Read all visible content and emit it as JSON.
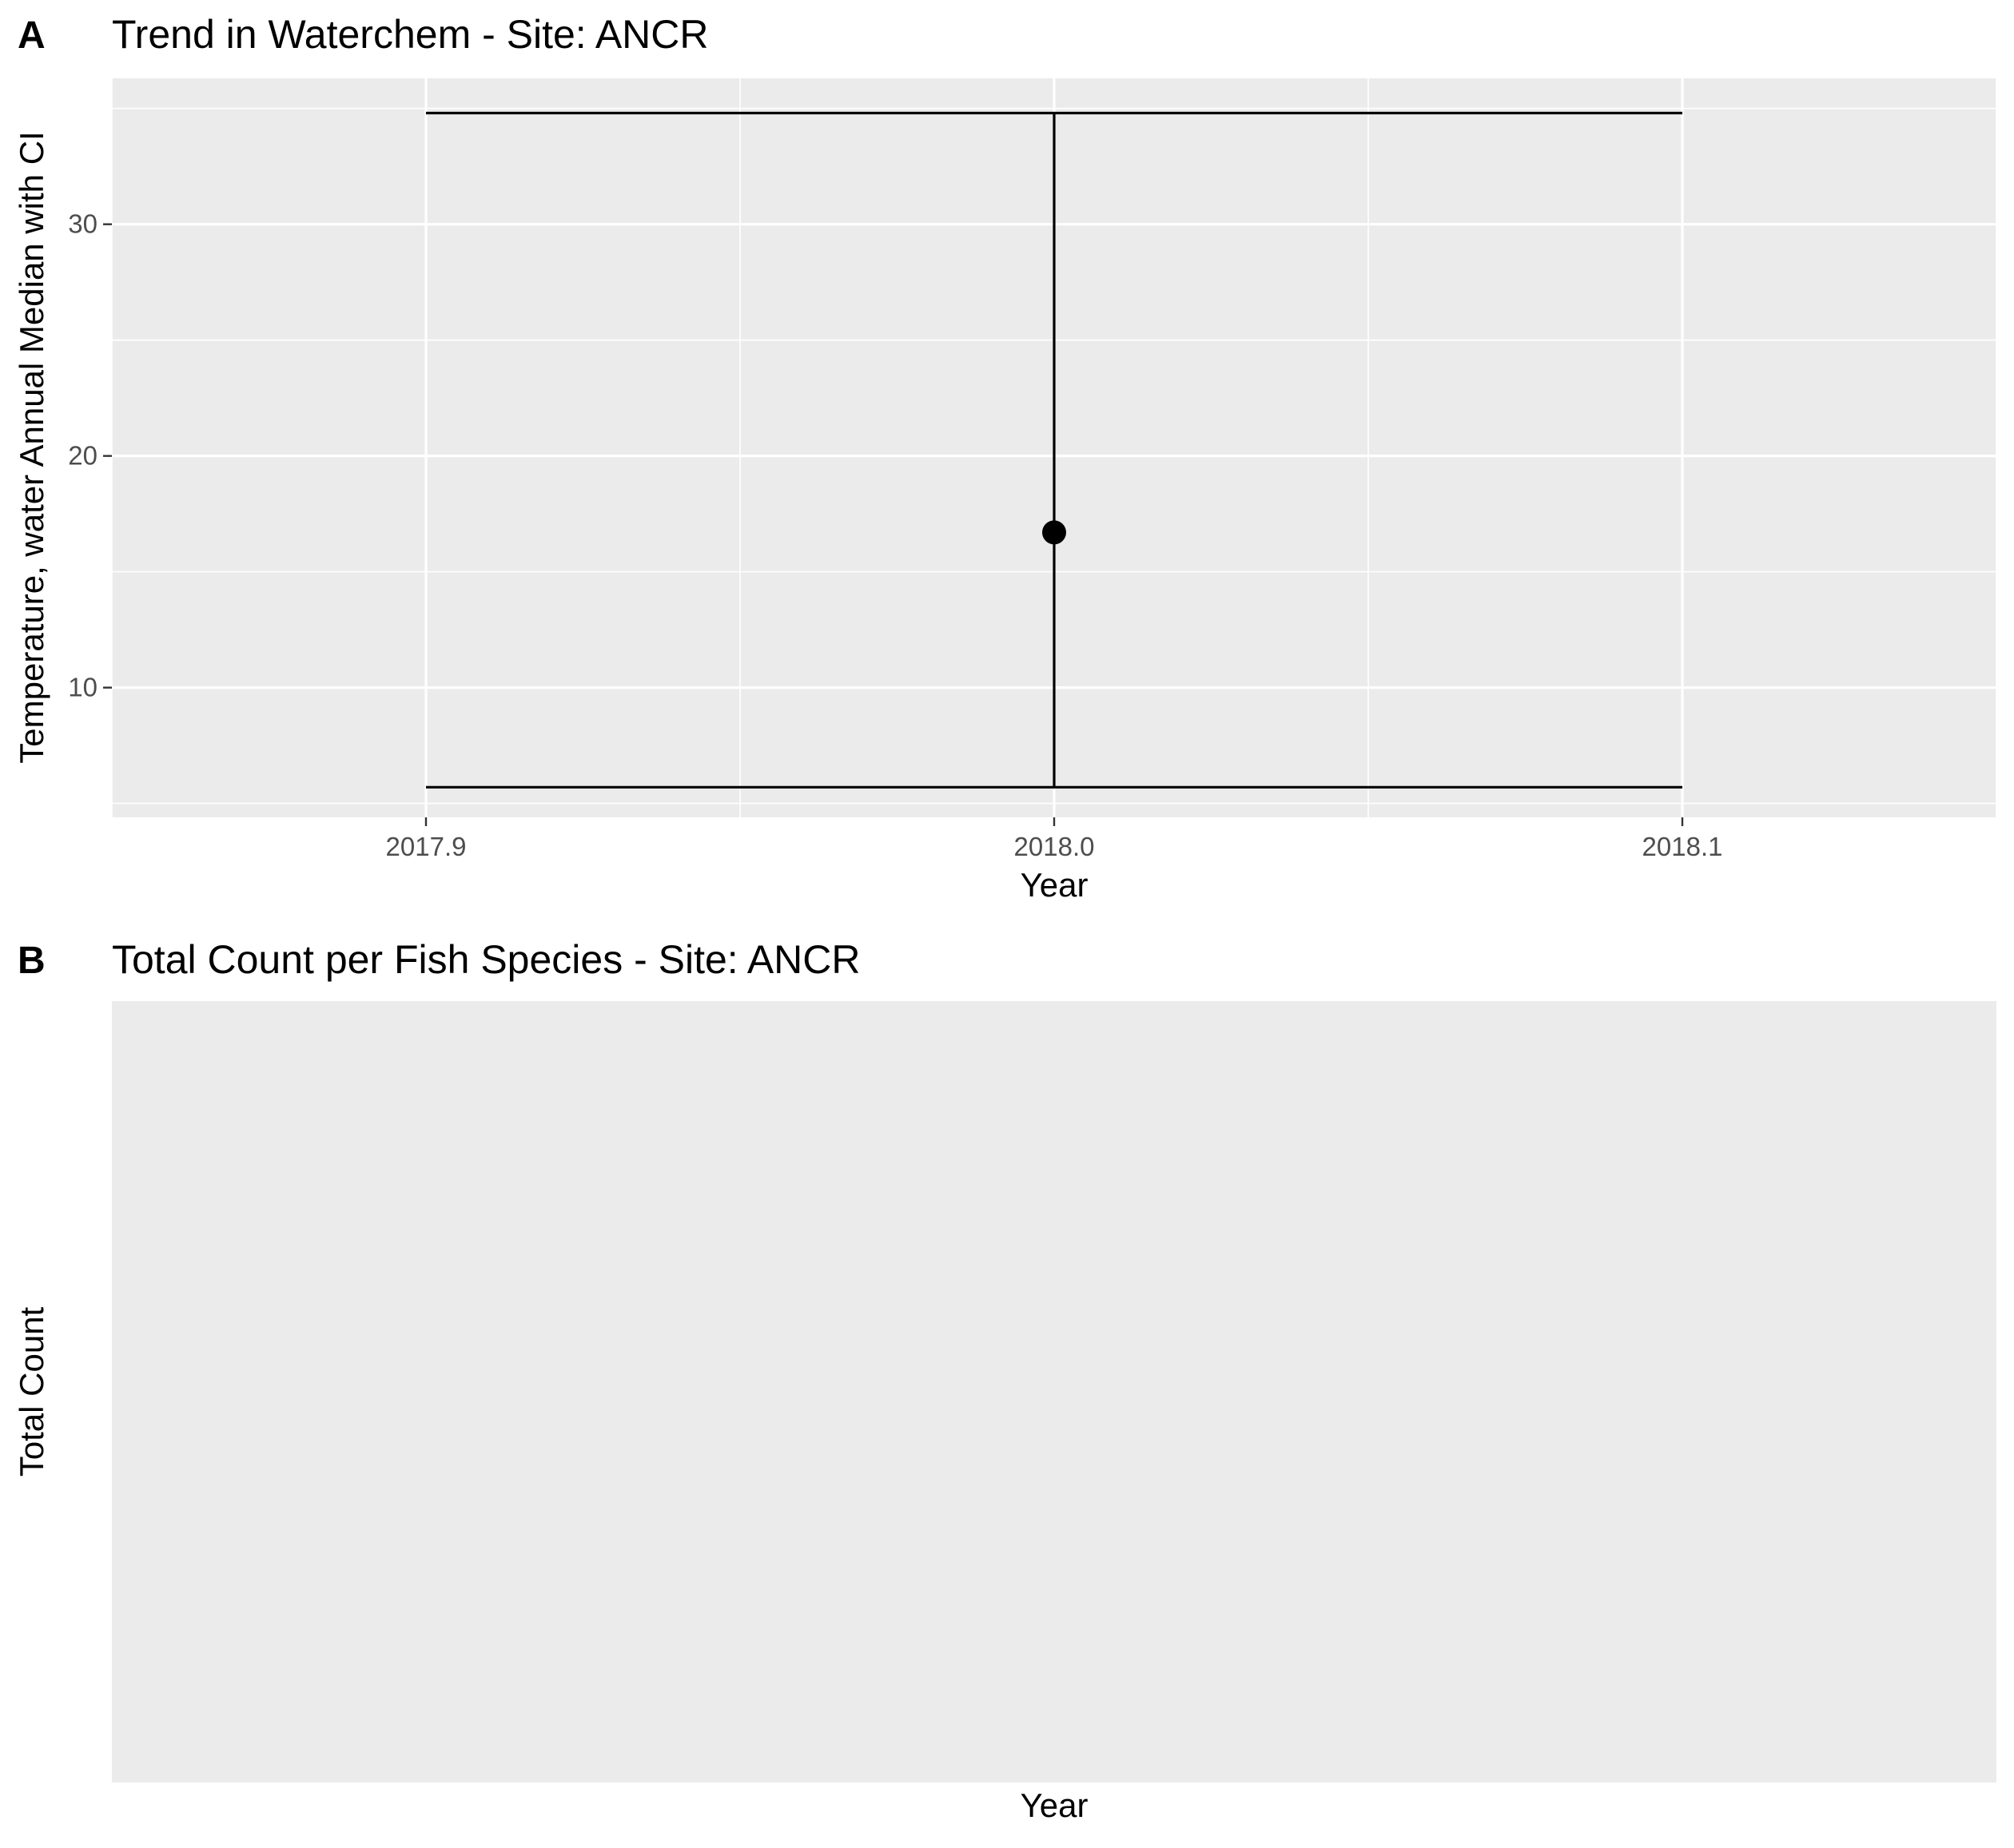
{
  "chart_data": [
    {
      "panel": "A",
      "type": "scatter",
      "title": "Trend in Waterchem - Site: ANCR",
      "xlabel": "Year",
      "ylabel": "Temperature, water Annual Median with CI",
      "xlim": [
        2017.85,
        2018.15
      ],
      "ylim": [
        4.4,
        36.3
      ],
      "x_ticks": [
        {
          "value": 2017.9,
          "label": "2017.9"
        },
        {
          "value": 2018.0,
          "label": "2018.0"
        },
        {
          "value": 2018.1,
          "label": "2018.1"
        }
      ],
      "y_ticks": [
        {
          "value": 10,
          "label": "10"
        },
        {
          "value": 20,
          "label": "20"
        },
        {
          "value": 30,
          "label": "30"
        }
      ],
      "points": [
        {
          "x": 2018.0,
          "y": 16.7,
          "ymin": 5.7,
          "ymax": 34.8,
          "errorbar_xmin": 2017.9,
          "errorbar_xmax": 2018.1
        }
      ],
      "grid": true,
      "background": "#ebebeb",
      "point_color": "#000000"
    },
    {
      "panel": "B",
      "type": "bar",
      "title": "Total Count per Fish Species - Site: ANCR",
      "xlabel": "Year",
      "ylabel": "Total Count",
      "categories": [],
      "values": [],
      "grid": false,
      "background": "#ebebeb"
    }
  ]
}
